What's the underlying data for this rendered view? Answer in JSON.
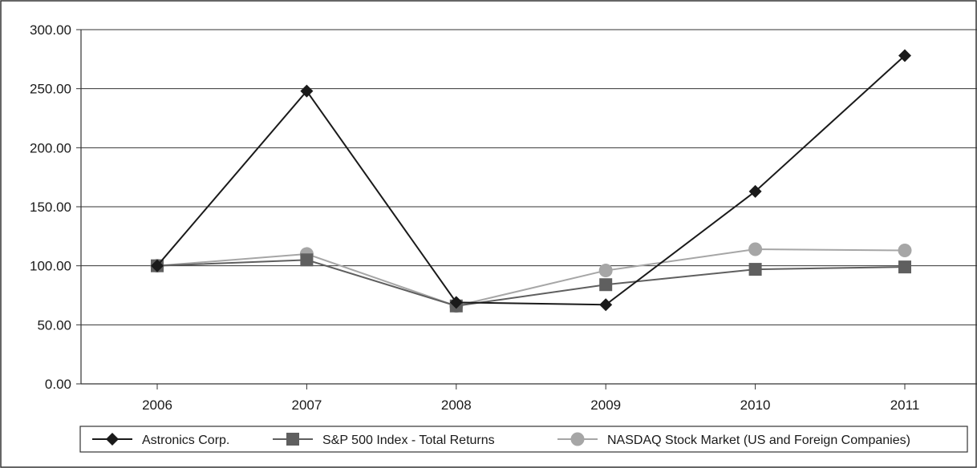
{
  "chart_data": {
    "type": "line",
    "title": "",
    "xlabel": "",
    "ylabel": "",
    "categories": [
      "2006",
      "2007",
      "2008",
      "2009",
      "2010",
      "2011"
    ],
    "ylim": [
      0,
      300
    ],
    "yticks": [
      "0.00",
      "50.00",
      "100.00",
      "150.00",
      "200.00",
      "250.00",
      "300.00"
    ],
    "grid": true,
    "legend_position": "bottom",
    "series": [
      {
        "name": "Astronics Corp.",
        "marker": "diamond",
        "color": "#1a1a1a",
        "values": [
          100,
          248,
          69,
          67,
          163,
          278
        ]
      },
      {
        "name": "S&P 500 Index - Total Returns",
        "marker": "square",
        "color": "#5f5f5f",
        "values": [
          100,
          105,
          66,
          84,
          97,
          99
        ]
      },
      {
        "name": "NASDAQ Stock Market (US and Foreign Companies)",
        "marker": "circle",
        "color": "#a6a6a6",
        "values": [
          100,
          110,
          66,
          96,
          114,
          113
        ]
      }
    ]
  }
}
